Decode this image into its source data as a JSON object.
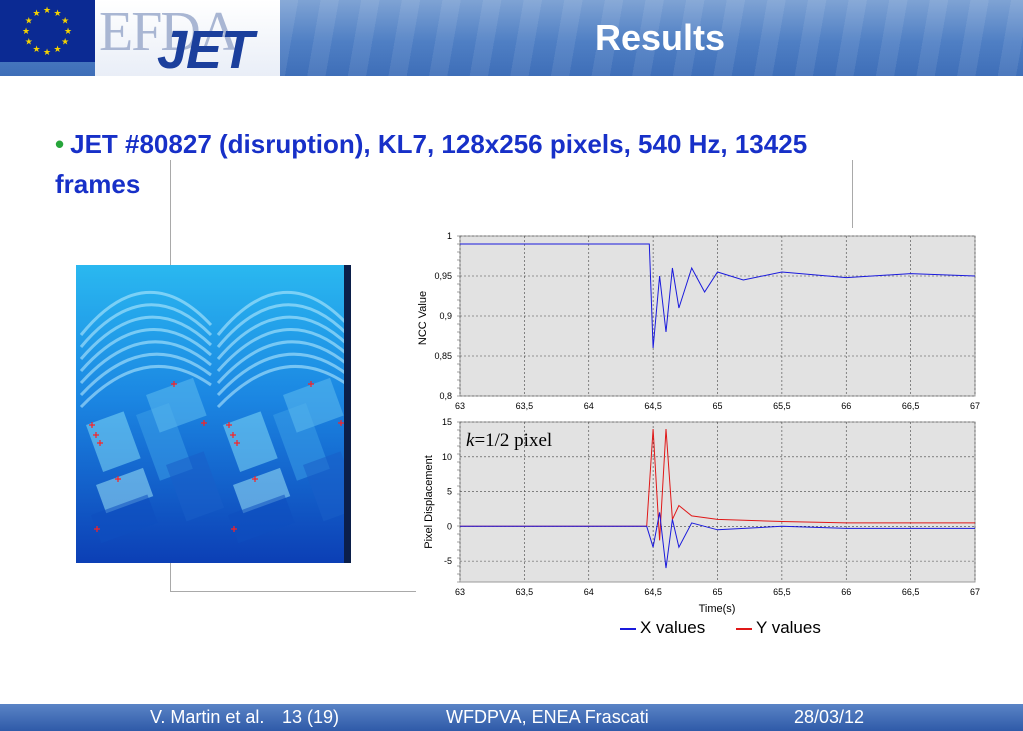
{
  "header": {
    "title": "Results",
    "logo_top": "EFDA",
    "logo_bottom": "JET"
  },
  "bullet": {
    "text": "JET #80827 (disruption), KL7, 128x256 pixels, 540 Hz, 13425 frames"
  },
  "annotation": {
    "k_symbol": "k",
    "k_rest": "=1/2 pixel"
  },
  "footer": {
    "author": "V. Martin et al.",
    "page": "13 (19)",
    "event": "WFDPVA, ENEA Frascati",
    "date": "28/03/12"
  },
  "colors": {
    "x_series": "#1a1adc",
    "y_series": "#e01818",
    "bullet_text": "#1730c8",
    "header": "#4f7fc4"
  },
  "chart_data": [
    {
      "type": "line",
      "ylabel": "NCC Value",
      "xlabel": "",
      "xlim": [
        63,
        67
      ],
      "ylim": [
        0.8,
        1
      ],
      "x_ticks": [
        "63",
        "63,5",
        "64",
        "64,5",
        "65",
        "65,5",
        "66",
        "66,5",
        "67"
      ],
      "y_ticks": [
        "0,8",
        "0,85",
        "0,9",
        "0,95",
        "1"
      ],
      "grid": true,
      "series": [
        {
          "color": "#1a1adc",
          "points": [
            [
              63,
              0.99
            ],
            [
              64.47,
              0.99
            ],
            [
              64.5,
              0.86
            ],
            [
              64.55,
              0.95
            ],
            [
              64.6,
              0.88
            ],
            [
              64.65,
              0.96
            ],
            [
              64.7,
              0.91
            ],
            [
              64.8,
              0.96
            ],
            [
              64.9,
              0.93
            ],
            [
              65,
              0.955
            ],
            [
              65.2,
              0.945
            ],
            [
              65.5,
              0.955
            ],
            [
              66,
              0.948
            ],
            [
              66.5,
              0.953
            ],
            [
              67,
              0.95
            ]
          ]
        }
      ]
    },
    {
      "type": "line",
      "ylabel": "Pixel Displacement",
      "xlabel": "Time(s)",
      "xlim": [
        63,
        67
      ],
      "ylim": [
        -8,
        15
      ],
      "x_ticks": [
        "63",
        "63,5",
        "64",
        "64,5",
        "65",
        "65,5",
        "66",
        "66,5",
        "67"
      ],
      "y_ticks": [
        "-5",
        "0",
        "5",
        "10",
        "15"
      ],
      "grid": true,
      "legend": "bottom",
      "series": [
        {
          "name": "X values",
          "color": "#1a1adc",
          "points": [
            [
              63,
              0
            ],
            [
              64.45,
              0
            ],
            [
              64.5,
              -3
            ],
            [
              64.55,
              2
            ],
            [
              64.6,
              -6
            ],
            [
              64.65,
              1
            ],
            [
              64.7,
              -3
            ],
            [
              64.8,
              0.5
            ],
            [
              65,
              -0.5
            ],
            [
              65.5,
              0
            ],
            [
              66,
              -0.3
            ],
            [
              67,
              -0.3
            ]
          ]
        },
        {
          "name": "Y values",
          "color": "#e01818",
          "points": [
            [
              63,
              0
            ],
            [
              64.45,
              0
            ],
            [
              64.5,
              14
            ],
            [
              64.55,
              -2
            ],
            [
              64.6,
              14
            ],
            [
              64.65,
              1
            ],
            [
              64.7,
              3
            ],
            [
              64.8,
              1.5
            ],
            [
              65,
              1
            ],
            [
              65.5,
              0.7
            ],
            [
              66,
              0.5
            ],
            [
              67,
              0.5
            ]
          ]
        }
      ]
    }
  ]
}
